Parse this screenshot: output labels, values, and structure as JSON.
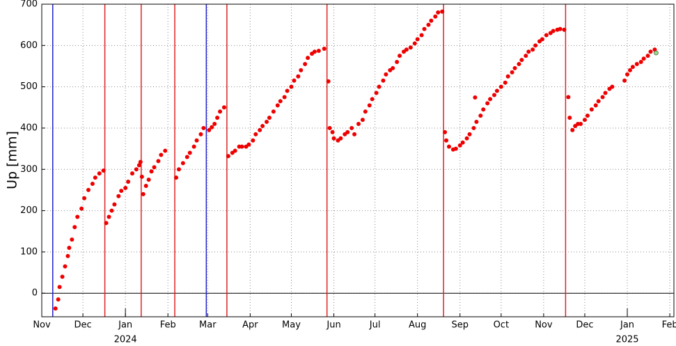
{
  "chart_data": {
    "type": "scatter",
    "y_label": "Up [mm]",
    "xlim": [
      0,
      461
    ],
    "ylim": [
      -57,
      700
    ],
    "yticks": [
      0,
      100,
      200,
      300,
      400,
      500,
      600,
      700
    ],
    "xticks": [
      {
        "value": 0,
        "label": "Nov"
      },
      {
        "value": 30,
        "label": "Dec"
      },
      {
        "value": 61,
        "label": "Jan"
      },
      {
        "value": 92,
        "label": "Feb"
      },
      {
        "value": 121,
        "label": "Mar"
      },
      {
        "value": 152,
        "label": "Apr"
      },
      {
        "value": 182,
        "label": "May"
      },
      {
        "value": 213,
        "label": "Jun"
      },
      {
        "value": 243,
        "label": "Jul"
      },
      {
        "value": 274,
        "label": "Aug"
      },
      {
        "value": 305,
        "label": "Sep"
      },
      {
        "value": 335,
        "label": "Oct"
      },
      {
        "value": 366,
        "label": "Nov"
      },
      {
        "value": 396,
        "label": "Dec"
      },
      {
        "value": 427,
        "label": "Jan"
      },
      {
        "value": 458,
        "label": "Feb"
      }
    ],
    "year_labels": [
      {
        "value": 61,
        "label": "2024"
      },
      {
        "value": 427,
        "label": "2025"
      }
    ],
    "grid": true,
    "zero_line": true,
    "color": "#ee0000",
    "last_point_color": "#90e080",
    "vlines": [
      {
        "x": 8,
        "color": "#2222cc"
      },
      {
        "x": 46,
        "color": "#dd2222"
      },
      {
        "x": 72.5,
        "color": "#dd2222"
      },
      {
        "x": 97,
        "color": "#dd2222"
      },
      {
        "x": 120,
        "color": "#2222cc"
      },
      {
        "x": 135,
        "color": "#dd2222"
      },
      {
        "x": 208,
        "color": "#dd2222"
      },
      {
        "x": 293,
        "color": "#dd2222"
      },
      {
        "x": 382,
        "color": "#dd2222"
      }
    ],
    "x": [
      10,
      12,
      13,
      15,
      17,
      19,
      20,
      22,
      24,
      26,
      29,
      31,
      34,
      37,
      39,
      42,
      45,
      47,
      49,
      51,
      53,
      56,
      58,
      61,
      63,
      66,
      69,
      71,
      72,
      73,
      74,
      76,
      78,
      80,
      82,
      85,
      87,
      90,
      98,
      100,
      103,
      106,
      108,
      111,
      113,
      116,
      118,
      122,
      124,
      126,
      128,
      130,
      133,
      136,
      139,
      141,
      144,
      146,
      149,
      151,
      154,
      156,
      159,
      161,
      164,
      166,
      169,
      172,
      174,
      177,
      179,
      182,
      184,
      187,
      189,
      192,
      194,
      197,
      199,
      202,
      206,
      209,
      210,
      212,
      213,
      216,
      218,
      221,
      223,
      226,
      228,
      231,
      234,
      236,
      239,
      241,
      244,
      246,
      249,
      251,
      254,
      256,
      259,
      261,
      264,
      266,
      269,
      272,
      274,
      277,
      279,
      282,
      284,
      287,
      289,
      292,
      294,
      295,
      297,
      300,
      302,
      305,
      307,
      310,
      312,
      315,
      316,
      317,
      320,
      322,
      325,
      327,
      330,
      332,
      335,
      338,
      340,
      343,
      345,
      348,
      350,
      353,
      355,
      358,
      360,
      363,
      365,
      368,
      371,
      373,
      376,
      378,
      381,
      384,
      385,
      387,
      389,
      391,
      393,
      396,
      398,
      401,
      404,
      406,
      409,
      411,
      414,
      416,
      425,
      427,
      429,
      431,
      434,
      437,
      439,
      442,
      444,
      447,
      448
    ],
    "values": [
      -37,
      -15,
      15,
      40,
      65,
      90,
      110,
      130,
      160,
      185,
      205,
      230,
      250,
      265,
      280,
      290,
      297,
      170,
      185,
      200,
      215,
      235,
      248,
      255,
      270,
      290,
      300,
      310,
      318,
      282,
      240,
      260,
      275,
      295,
      305,
      320,
      335,
      345,
      280,
      300,
      315,
      330,
      340,
      355,
      370,
      385,
      400,
      395,
      402,
      410,
      425,
      440,
      450,
      332,
      340,
      345,
      355,
      355,
      355,
      360,
      370,
      385,
      395,
      405,
      415,
      425,
      440,
      455,
      465,
      475,
      490,
      500,
      515,
      525,
      540,
      555,
      570,
      580,
      585,
      587,
      592,
      513,
      400,
      390,
      375,
      370,
      375,
      385,
      390,
      400,
      385,
      410,
      420,
      440,
      455,
      470,
      485,
      500,
      515,
      530,
      540,
      545,
      560,
      575,
      585,
      590,
      595,
      605,
      615,
      625,
      640,
      650,
      660,
      670,
      680,
      682,
      390,
      370,
      355,
      348,
      350,
      358,
      365,
      375,
      385,
      400,
      474,
      415,
      430,
      445,
      460,
      470,
      480,
      490,
      500,
      510,
      525,
      535,
      545,
      555,
      565,
      575,
      585,
      590,
      600,
      610,
      615,
      625,
      630,
      635,
      638,
      640,
      638,
      475,
      425,
      395,
      405,
      410,
      410,
      420,
      430,
      445,
      455,
      465,
      475,
      485,
      495,
      500,
      515,
      530,
      540,
      548,
      555,
      560,
      568,
      575,
      585,
      590,
      582
    ]
  }
}
